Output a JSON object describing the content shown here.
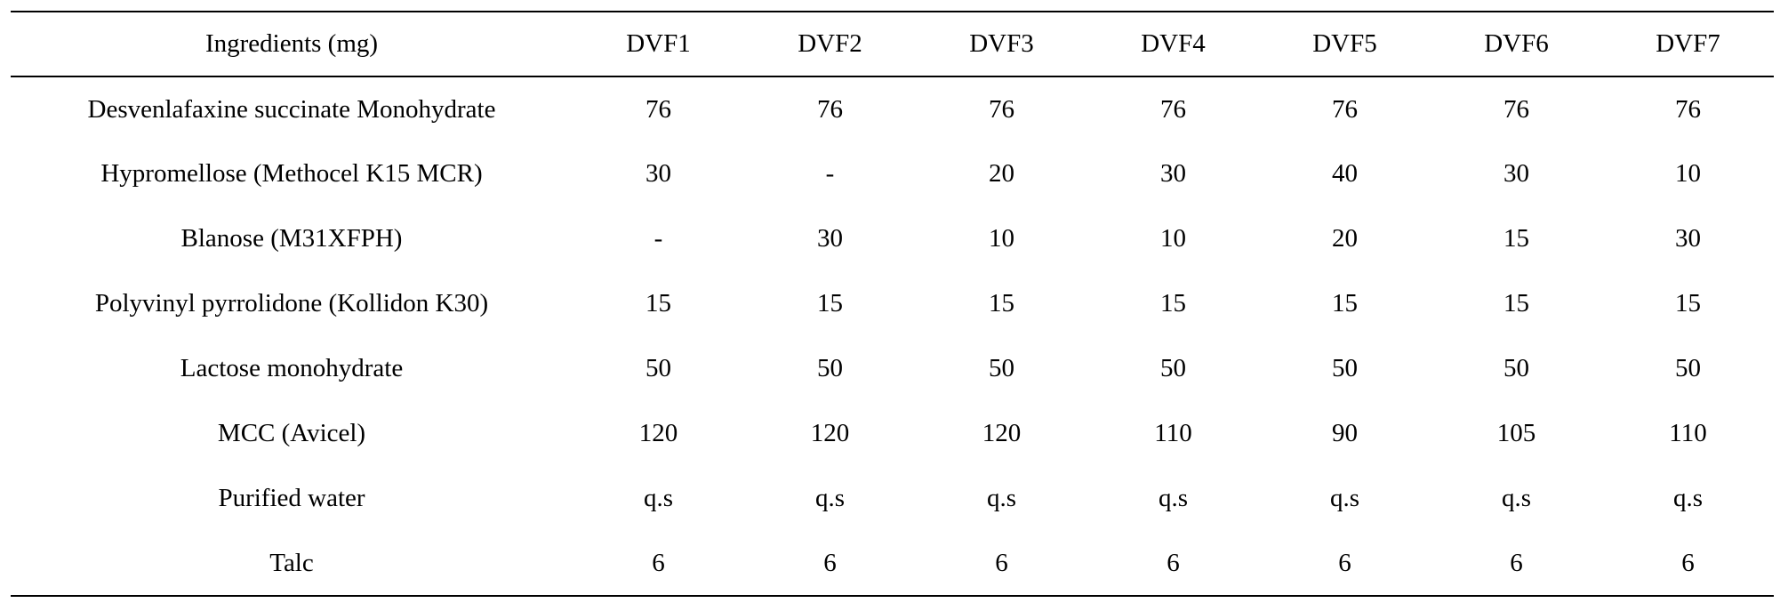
{
  "table": {
    "columns": [
      "Ingredients (mg)",
      "DVF1",
      "DVF2",
      "DVF3",
      "DVF4",
      "DVF5",
      "DVF6",
      "DVF7"
    ],
    "rows": [
      [
        "Desvenlafaxine succinate Monohydrate",
        "76",
        "76",
        "76",
        "76",
        "76",
        "76",
        "76"
      ],
      [
        "Hypromellose (Methocel K15 MCR)",
        "30",
        "-",
        "20",
        "30",
        "40",
        "30",
        "10"
      ],
      [
        "Blanose (M31XFPH)",
        "-",
        "30",
        "10",
        "10",
        "20",
        "15",
        "30"
      ],
      [
        "Polyvinyl pyrrolidone (Kollidon K30)",
        "15",
        "15",
        "15",
        "15",
        "15",
        "15",
        "15"
      ],
      [
        "Lactose monohydrate",
        "50",
        "50",
        "50",
        "50",
        "50",
        "50",
        "50"
      ],
      [
        "MCC (Avicel)",
        "120",
        "120",
        "120",
        "110",
        "90",
        "105",
        "110"
      ],
      [
        "Purified water",
        "q.s",
        "q.s",
        "q.s",
        "q.s",
        "q.s",
        "q.s",
        "q.s"
      ],
      [
        "Talc",
        "6",
        "6",
        "6",
        "6",
        "6",
        "6",
        "6"
      ]
    ]
  }
}
